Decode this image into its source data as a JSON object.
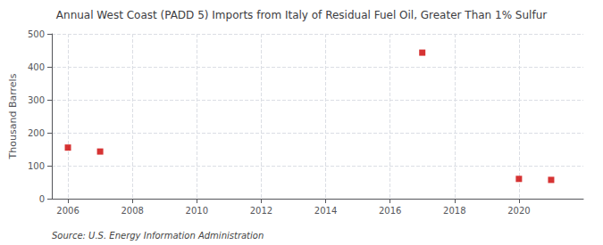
{
  "chart_data": {
    "type": "scatter",
    "title": "Annual West Coast (PADD 5) Imports from Italy of Residual Fuel Oil, Greater Than 1% Sulfur",
    "ylabel": "Thousand Barrels",
    "annotations": [
      "Source: U.S. Energy Information Administration"
    ],
    "x": [
      2006,
      2007,
      2017,
      2020,
      2021
    ],
    "values": [
      155,
      143,
      443,
      60,
      57
    ],
    "color": "#cc0000",
    "marker": "square",
    "xlim": [
      2005.5,
      2022.0
    ],
    "ylim": [
      0,
      500
    ],
    "xticks": [
      2006,
      2008,
      2010,
      2012,
      2014,
      2016,
      2018,
      2020
    ],
    "yticks": [
      0,
      100,
      200,
      300,
      400,
      500
    ],
    "grid": true
  }
}
